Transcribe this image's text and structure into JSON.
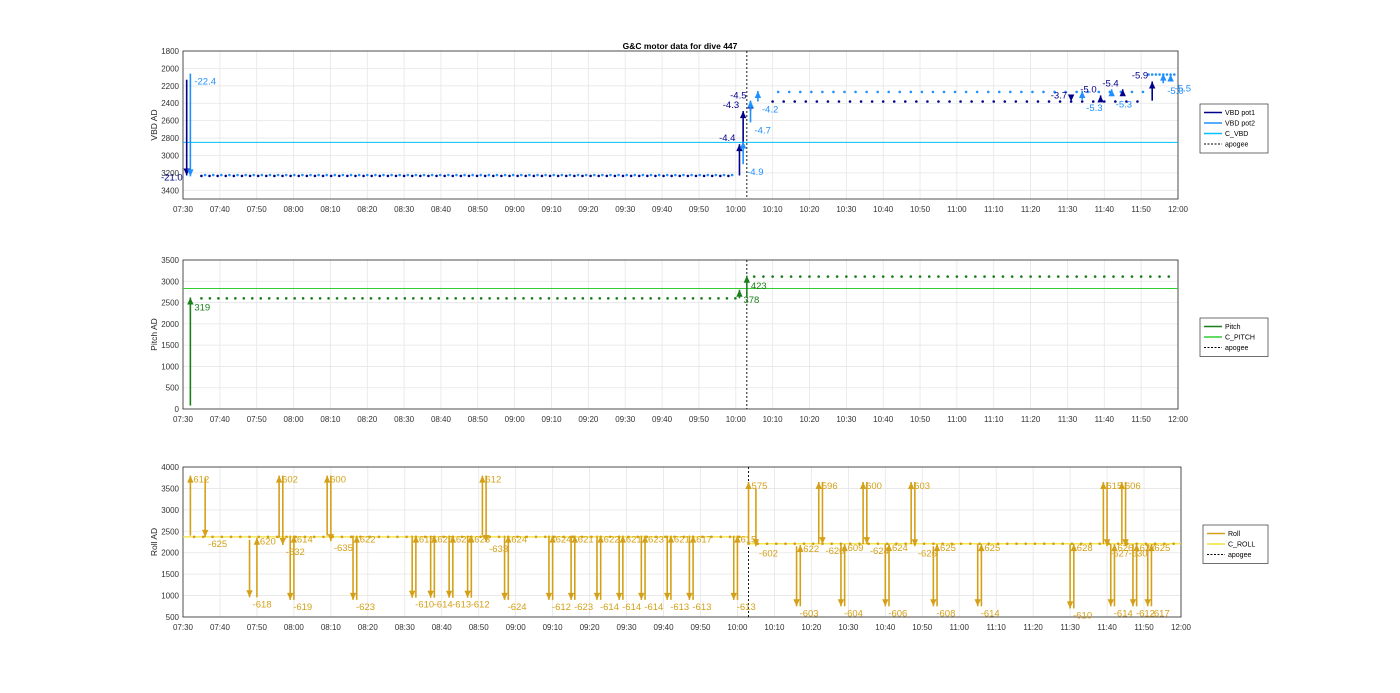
{
  "title": "G&C motor data for dive 447",
  "time_ticks": [
    "07:30",
    "07:40",
    "07:50",
    "08:00",
    "08:10",
    "08:20",
    "08:30",
    "08:40",
    "08:50",
    "09:00",
    "09:10",
    "09:20",
    "09:30",
    "09:40",
    "09:50",
    "10:00",
    "10:10",
    "10:20",
    "10:30",
    "10:40",
    "10:50",
    "11:00",
    "11:10",
    "11:20",
    "11:30",
    "11:40",
    "11:50",
    "12:00"
  ],
  "chart_data": [
    {
      "type": "line",
      "title": "G&C motor data for dive 447",
      "xlabel": "",
      "ylabel": "VBD AD",
      "xlim": [
        "07:30",
        "12:00"
      ],
      "ylim": [
        1800,
        3500
      ],
      "y_reversed": true,
      "yticks": [
        1800,
        2000,
        2200,
        2400,
        2600,
        2800,
        3000,
        3200,
        3400
      ],
      "grid": true,
      "legend_position": "right",
      "apogee": "10:03",
      "series": [
        {
          "name": "VBD pot1",
          "color": "#00008b"
        },
        {
          "name": "VBD pot2",
          "color": "#1e90ff"
        },
        {
          "name": "C_VBD",
          "color": "#00bfff",
          "value": 2850
        },
        {
          "name": "apogee",
          "color": "#000000"
        }
      ],
      "pot1_moves": [
        {
          "time": "07:31",
          "from": 2130,
          "to": 3230,
          "label": "-21.0"
        },
        {
          "time": "10:01",
          "from": 3230,
          "to": 2870,
          "label": "-4.4"
        },
        {
          "time": "10:02",
          "from": 2870,
          "to": 2490,
          "label": "-4.3"
        },
        {
          "time": "10:04",
          "from": 2490,
          "to": 2380,
          "label": "-4.5"
        },
        {
          "time": "11:31",
          "from": 2380,
          "to": 2380,
          "label": "-3.7"
        },
        {
          "time": "11:39",
          "from": 2350,
          "to": 2310,
          "label": "-5.0"
        },
        {
          "time": "11:45",
          "from": 2310,
          "to": 2240,
          "label": "-5.4"
        },
        {
          "time": "11:53",
          "from": 2370,
          "to": 2150,
          "label": "-5.9"
        }
      ],
      "pot2_moves": [
        {
          "time": "07:32",
          "from": 2060,
          "to": 3240,
          "label": "-22.4"
        },
        {
          "time": "10:02",
          "from": 3100,
          "to": 2840,
          "label": "-4.9"
        },
        {
          "time": "10:04",
          "from": 2620,
          "to": 2370,
          "label": "-4.7"
        },
        {
          "time": "10:06",
          "from": 2380,
          "to": 2260,
          "label": "-4.2"
        },
        {
          "time": "11:34",
          "from": 2360,
          "to": 2260,
          "label": "-5.3"
        },
        {
          "time": "11:42",
          "from": 2320,
          "to": 2240,
          "label": "-5.3"
        },
        {
          "time": "11:56",
          "from": 2170,
          "to": 2060,
          "label": "-5.0"
        },
        {
          "time": "11:58",
          "from": 2140,
          "to": 2070,
          "label": "-5.5"
        }
      ]
    },
    {
      "type": "line",
      "xlabel": "",
      "ylabel": "Pitch AD",
      "xlim": [
        "07:30",
        "12:00"
      ],
      "ylim": [
        0,
        3500
      ],
      "yticks": [
        0,
        500,
        1000,
        1500,
        2000,
        2500,
        3000,
        3500
      ],
      "grid": true,
      "legend_position": "right",
      "apogee": "10:03",
      "series": [
        {
          "name": "Pitch",
          "color": "#1a7f1a"
        },
        {
          "name": "C_PITCH",
          "color": "#32cd32",
          "value": 2830
        },
        {
          "name": "apogee",
          "color": "#000000"
        }
      ],
      "pitch_moves": [
        {
          "time": "07:32",
          "from": 80,
          "to": 2620,
          "label": "319"
        },
        {
          "time": "10:01",
          "from": 2600,
          "to": 2800,
          "label": "378"
        },
        {
          "time": "10:03",
          "from": 2620,
          "to": 3130,
          "label": "423"
        }
      ],
      "pitch_before": 2600,
      "pitch_after": 3110
    },
    {
      "type": "line",
      "xlabel": "",
      "ylabel": "Roll AD",
      "xlim": [
        "07:30",
        "12:00"
      ],
      "ylim": [
        500,
        4000
      ],
      "yticks": [
        500,
        1000,
        1500,
        2000,
        2500,
        3000,
        3500,
        4000
      ],
      "grid": true,
      "legend_position": "right",
      "apogee": "10:03",
      "series": [
        {
          "name": "Roll",
          "color": "#d4a017"
        },
        {
          "name": "C_ROLL",
          "color": "#f2e034",
          "value_before": 2370,
          "value_after": 2210
        },
        {
          "name": "apogee",
          "color": "#000000"
        }
      ],
      "roll_moves": [
        {
          "time": "07:32",
          "from": 2400,
          "to": 3800,
          "label": "612"
        },
        {
          "time": "07:36",
          "from": 3750,
          "to": 2370,
          "label": "-625"
        },
        {
          "time": "07:48",
          "from": 2300,
          "to": 960,
          "label": "-618"
        },
        {
          "time": "07:50",
          "from": 960,
          "to": 2350,
          "label": "620"
        },
        {
          "time": "07:56",
          "from": 2350,
          "to": 3800,
          "label": "602"
        },
        {
          "time": "07:57",
          "from": 3800,
          "to": 2180,
          "label": "-632"
        },
        {
          "time": "07:59",
          "from": 2400,
          "to": 900,
          "label": "-619"
        },
        {
          "time": "08:00",
          "from": 900,
          "to": 2400,
          "label": "614"
        },
        {
          "time": "08:09",
          "from": 2400,
          "to": 3800,
          "label": "600"
        },
        {
          "time": "08:10",
          "from": 3800,
          "to": 2270,
          "label": "-635"
        },
        {
          "time": "08:16",
          "from": 2400,
          "to": 900,
          "label": "-623"
        },
        {
          "time": "08:17",
          "from": 900,
          "to": 2400,
          "label": "622"
        },
        {
          "time": "08:32",
          "from": 2400,
          "to": 950,
          "label": "-610"
        },
        {
          "time": "08:33",
          "from": 950,
          "to": 2400,
          "label": "618"
        },
        {
          "time": "08:37",
          "from": 2400,
          "to": 950,
          "label": "-614"
        },
        {
          "time": "08:38",
          "from": 950,
          "to": 2400,
          "label": "625"
        },
        {
          "time": "08:42",
          "from": 2400,
          "to": 950,
          "label": "-613"
        },
        {
          "time": "08:43",
          "from": 950,
          "to": 2400,
          "label": "627"
        },
        {
          "time": "08:47",
          "from": 2400,
          "to": 950,
          "label": "-612"
        },
        {
          "time": "08:48",
          "from": 950,
          "to": 2400,
          "label": "623"
        },
        {
          "time": "08:51",
          "from": 2400,
          "to": 3800,
          "label": "612"
        },
        {
          "time": "08:52",
          "from": 3800,
          "to": 2250,
          "label": "-633"
        },
        {
          "time": "08:57",
          "from": 2400,
          "to": 900,
          "label": "-624"
        },
        {
          "time": "08:58",
          "from": 900,
          "to": 2400,
          "label": "624"
        },
        {
          "time": "09:09",
          "from": 2400,
          "to": 900,
          "label": "-612"
        },
        {
          "time": "09:10",
          "from": 900,
          "to": 2400,
          "label": "624"
        },
        {
          "time": "09:15",
          "from": 2400,
          "to": 900,
          "label": "-623"
        },
        {
          "time": "09:16",
          "from": 900,
          "to": 2400,
          "label": "621"
        },
        {
          "time": "09:22",
          "from": 2400,
          "to": 900,
          "label": "-614"
        },
        {
          "time": "09:23",
          "from": 900,
          "to": 2400,
          "label": "622"
        },
        {
          "time": "09:28",
          "from": 2400,
          "to": 900,
          "label": "-614"
        },
        {
          "time": "09:29",
          "from": 900,
          "to": 2400,
          "label": "621"
        },
        {
          "time": "09:34",
          "from": 2400,
          "to": 900,
          "label": "-614"
        },
        {
          "time": "09:35",
          "from": 900,
          "to": 2400,
          "label": "623"
        },
        {
          "time": "09:41",
          "from": 2400,
          "to": 900,
          "label": "-613"
        },
        {
          "time": "09:42",
          "from": 900,
          "to": 2400,
          "label": "621"
        },
        {
          "time": "09:47",
          "from": 2400,
          "to": 900,
          "label": "-613"
        },
        {
          "time": "09:48",
          "from": 900,
          "to": 2400,
          "label": "617"
        },
        {
          "time": "09:59",
          "from": 2400,
          "to": 900,
          "label": "-613"
        },
        {
          "time": "10:00",
          "from": 900,
          "to": 2400,
          "label": "615"
        },
        {
          "time": "10:03",
          "from": 2200,
          "to": 3650,
          "label": "575"
        },
        {
          "time": "10:05",
          "from": 3500,
          "to": 2150,
          "label": "-602"
        },
        {
          "time": "10:16",
          "from": 2150,
          "to": 750,
          "label": "-603"
        },
        {
          "time": "10:17",
          "from": 750,
          "to": 2180,
          "label": "622"
        },
        {
          "time": "10:22",
          "from": 2200,
          "to": 3650,
          "label": "596"
        },
        {
          "time": "10:23",
          "from": 3650,
          "to": 2200,
          "label": "-620"
        },
        {
          "time": "10:28",
          "from": 2200,
          "to": 750,
          "label": "-604"
        },
        {
          "time": "10:29",
          "from": 750,
          "to": 2200,
          "label": "609"
        },
        {
          "time": "10:34",
          "from": 2200,
          "to": 3650,
          "label": "600"
        },
        {
          "time": "10:35",
          "from": 3650,
          "to": 2200,
          "label": "-624"
        },
        {
          "time": "10:40",
          "from": 2200,
          "to": 750,
          "label": "-606"
        },
        {
          "time": "10:41",
          "from": 750,
          "to": 2200,
          "label": "624"
        },
        {
          "time": "10:47",
          "from": 2200,
          "to": 3650,
          "label": "603"
        },
        {
          "time": "10:48",
          "from": 3650,
          "to": 2150,
          "label": "-626"
        },
        {
          "time": "10:53",
          "from": 2150,
          "to": 750,
          "label": "-608"
        },
        {
          "time": "10:54",
          "from": 750,
          "to": 2200,
          "label": "625"
        },
        {
          "time": "11:05",
          "from": 2200,
          "to": 750,
          "label": "-614"
        },
        {
          "time": "11:06",
          "from": 750,
          "to": 2200,
          "label": "625"
        },
        {
          "time": "11:30",
          "from": 2200,
          "to": 700,
          "label": "-610"
        },
        {
          "time": "11:31",
          "from": 700,
          "to": 2200,
          "label": "628"
        },
        {
          "time": "11:39",
          "from": 2200,
          "to": 3650,
          "label": "615"
        },
        {
          "time": "11:40",
          "from": 3650,
          "to": 2150,
          "label": "-627"
        },
        {
          "time": "11:41",
          "from": 2200,
          "to": 750,
          "label": "-614"
        },
        {
          "time": "11:42",
          "from": 750,
          "to": 2200,
          "label": "626"
        },
        {
          "time": "11:44",
          "from": 2200,
          "to": 3650,
          "label": "606"
        },
        {
          "time": "11:45",
          "from": 3650,
          "to": 2150,
          "label": "-630"
        },
        {
          "time": "11:47",
          "from": 2200,
          "to": 750,
          "label": "-612"
        },
        {
          "time": "11:48",
          "from": 750,
          "to": 2200,
          "label": "627"
        },
        {
          "time": "11:51",
          "from": 2200,
          "to": 750,
          "label": "-617"
        },
        {
          "time": "11:52",
          "from": 750,
          "to": 2200,
          "label": "625"
        }
      ]
    }
  ]
}
